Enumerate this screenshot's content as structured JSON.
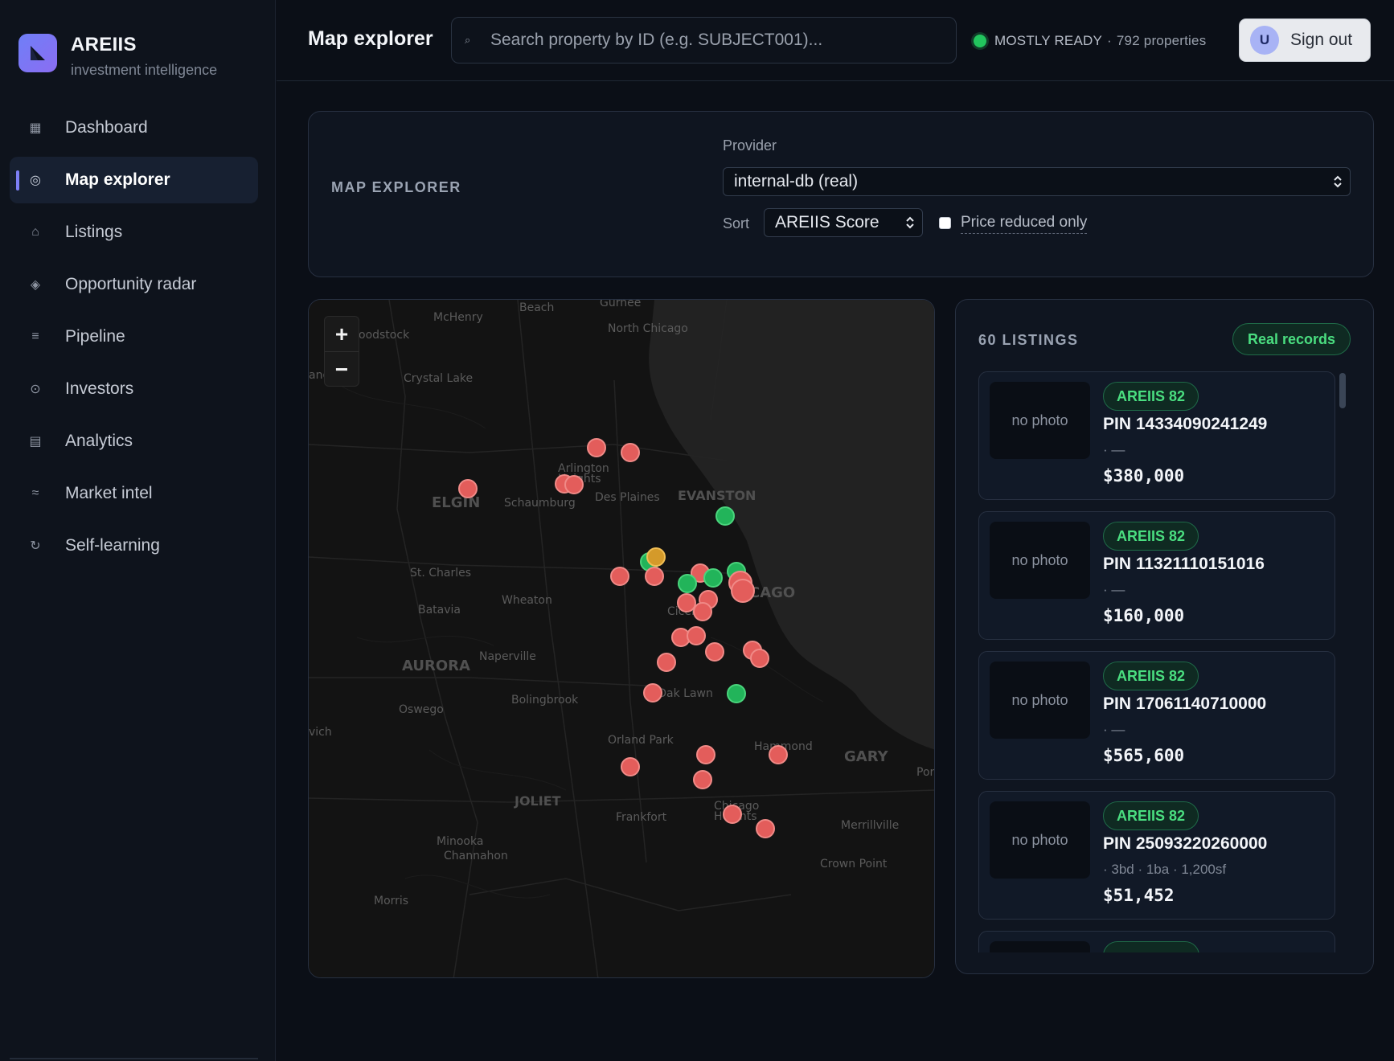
{
  "brand": {
    "name": "AREIIS",
    "subtitle": "investment intelligence"
  },
  "sidebar": {
    "items": [
      {
        "label": "Dashboard",
        "icon": "grid-icon",
        "active": false
      },
      {
        "label": "Map explorer",
        "icon": "target-icon",
        "active": true
      },
      {
        "label": "Listings",
        "icon": "home-icon",
        "active": false
      },
      {
        "label": "Opportunity radar",
        "icon": "diamond-icon",
        "active": false
      },
      {
        "label": "Pipeline",
        "icon": "lines-icon",
        "active": false
      },
      {
        "label": "Investors",
        "icon": "circle-dot-icon",
        "active": false
      },
      {
        "label": "Analytics",
        "icon": "bars-icon",
        "active": false
      },
      {
        "label": "Market intel",
        "icon": "wave-icon",
        "active": false
      },
      {
        "label": "Self-learning",
        "icon": "refresh-icon",
        "active": false
      }
    ]
  },
  "header": {
    "title": "Map explorer",
    "search_placeholder": "Search property by ID (e.g. SUBJECT001)...",
    "status_label": "MOSTLY READY",
    "status_separator": "·",
    "status_count": "792 properties",
    "status_color": "#22c55e",
    "avatar_initial": "U",
    "signout_label": "Sign out"
  },
  "controls": {
    "title": "MAP EXPLORER",
    "provider_label": "Provider",
    "provider_value": "internal-db (real)",
    "sort_label": "Sort",
    "sort_value": "AREIIS Score",
    "price_reduced_label": "Price reduced only",
    "price_reduced_checked": false
  },
  "map": {
    "zoom_in": "+",
    "zoom_out": "−",
    "labels": [
      "McHenry",
      "Beach",
      "Gurnee",
      "North Chicago",
      "oodstock",
      "Crystal Lake",
      "ang",
      "Arlington Heights",
      "ELGIN",
      "Schaumburg",
      "Des Plaines",
      "EVANSTON",
      "St. Charles",
      "Batavia",
      "Wheaton",
      "CAGO",
      "Cicero",
      "AURORA",
      "Naperville",
      "Oswego",
      "Bolingbrook",
      "Oak Lawn",
      "vich",
      "Orland Park",
      "Hammond",
      "GARY",
      "Por",
      "JOLIET",
      "Frankfort",
      "Chicago Heights",
      "Merrillville",
      "Minooka",
      "Channahon",
      "Crown Point",
      "Morris"
    ],
    "marker_colors": {
      "red": "#e35d5b",
      "green": "#22b45a",
      "orange": "#d49a2a"
    }
  },
  "listings": {
    "count_label": "60 LISTINGS",
    "badge": "Real records",
    "items": [
      {
        "photo": "no photo",
        "score": "AREIIS 82",
        "pin": "PIN 14334090241249",
        "details": "· —",
        "price": "$380,000"
      },
      {
        "photo": "no photo",
        "score": "AREIIS 82",
        "pin": "PIN 11321110151016",
        "details": "· —",
        "price": "$160,000"
      },
      {
        "photo": "no photo",
        "score": "AREIIS 82",
        "pin": "PIN 17061140710000",
        "details": "· —",
        "price": "$565,600"
      },
      {
        "photo": "no photo",
        "score": "AREIIS 82",
        "pin": "PIN 25093220260000",
        "details": "· 3bd · 1ba · 1,200sf",
        "price": "$51,452"
      },
      {
        "photo": "",
        "score": "",
        "pin": "",
        "details": "",
        "price": ""
      }
    ]
  }
}
